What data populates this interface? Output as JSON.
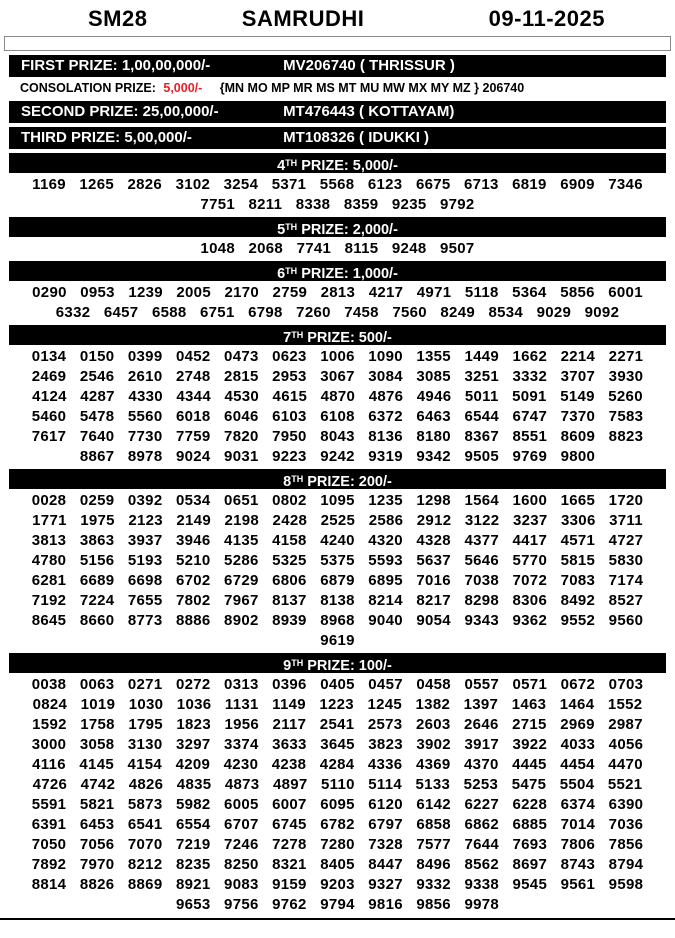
{
  "header": {
    "code": "SM28",
    "name": "SAMRUDHI",
    "date": "09-11-2025"
  },
  "colors": {
    "accent_red": "#ed1c24",
    "bar_bg": "#000000",
    "bar_text": "#ffffff"
  },
  "top_prizes": {
    "first": {
      "label": "FIRST PRIZE: 1,00,00,000/-",
      "winner": "MV206740 ( THRISSUR )"
    },
    "second": {
      "label": "SECOND PRIZE: 25,00,000/-",
      "winner": "MT476443 ( KOTTAYAM)"
    },
    "third": {
      "label": "THIRD PRIZE: 5,00,000/-",
      "winner": "MT108326 ( IDUKKI )"
    }
  },
  "consolation": {
    "label": "CONSOLATION PRIZE:",
    "amount": "5,000/-",
    "series": "{MN MO MP MR MS MT MU MW MX MY MZ } 206740"
  },
  "sections": [
    {
      "num": "4",
      "sup": "TH",
      "rest": " PRIZE: 5,000/-",
      "rows": [
        [
          "1169",
          "1265",
          "2826",
          "3102",
          "3254",
          "5371",
          "5568",
          "6123",
          "6675",
          "6713",
          "6819",
          "6909",
          "7346"
        ],
        [
          "7751",
          "8211",
          "8338",
          "8359",
          "9235",
          "9792"
        ]
      ]
    },
    {
      "num": "5",
      "sup": "TH",
      "rest": " PRIZE: 2,000/-",
      "rows": [
        [
          "1048",
          "2068",
          "7741",
          "8115",
          "9248",
          "9507"
        ]
      ]
    },
    {
      "num": "6",
      "sup": "TH",
      "rest": " PRIZE: 1,000/-",
      "rows": [
        [
          "0290",
          "0953",
          "1239",
          "2005",
          "2170",
          "2759",
          "2813",
          "4217",
          "4971",
          "5118",
          "5364",
          "5856",
          "6001"
        ],
        [
          "6332",
          "6457",
          "6588",
          "6751",
          "6798",
          "7260",
          "7458",
          "7560",
          "8249",
          "8534",
          "9029",
          "9092"
        ]
      ]
    },
    {
      "num": "7",
      "sup": "TH",
      "rest": " PRIZE: 500/-",
      "rows": [
        [
          "0134",
          "0150",
          "0399",
          "0452",
          "0473",
          "0623",
          "1006",
          "1090",
          "1355",
          "1449",
          "1662",
          "2214",
          "2271"
        ],
        [
          "2469",
          "2546",
          "2610",
          "2748",
          "2815",
          "2953",
          "3067",
          "3084",
          "3085",
          "3251",
          "3332",
          "3707",
          "3930"
        ],
        [
          "4124",
          "4287",
          "4330",
          "4344",
          "4530",
          "4615",
          "4870",
          "4876",
          "4946",
          "5011",
          "5091",
          "5149",
          "5260"
        ],
        [
          "5460",
          "5478",
          "5560",
          "6018",
          "6046",
          "6103",
          "6108",
          "6372",
          "6463",
          "6544",
          "6747",
          "7370",
          "7583"
        ],
        [
          "7617",
          "7640",
          "7730",
          "7759",
          "7820",
          "7950",
          "8043",
          "8136",
          "8180",
          "8367",
          "8551",
          "8609",
          "8823"
        ],
        [
          "8867",
          "8978",
          "9024",
          "9031",
          "9223",
          "9242",
          "9319",
          "9342",
          "9505",
          "9769",
          "9800"
        ]
      ]
    },
    {
      "num": "8",
      "sup": "TH",
      "rest": " PRIZE: 200/-",
      "rows": [
        [
          "0028",
          "0259",
          "0392",
          "0534",
          "0651",
          "0802",
          "1095",
          "1235",
          "1298",
          "1564",
          "1600",
          "1665",
          "1720"
        ],
        [
          "1771",
          "1975",
          "2123",
          "2149",
          "2198",
          "2428",
          "2525",
          "2586",
          "2912",
          "3122",
          "3237",
          "3306",
          "3711"
        ],
        [
          "3813",
          "3863",
          "3937",
          "3946",
          "4135",
          "4158",
          "4240",
          "4320",
          "4328",
          "4377",
          "4417",
          "4571",
          "4727"
        ],
        [
          "4780",
          "5156",
          "5193",
          "5210",
          "5286",
          "5325",
          "5375",
          "5593",
          "5637",
          "5646",
          "5770",
          "5815",
          "5830"
        ],
        [
          "6281",
          "6689",
          "6698",
          "6702",
          "6729",
          "6806",
          "6879",
          "6895",
          "7016",
          "7038",
          "7072",
          "7083",
          "7174"
        ],
        [
          "7192",
          "7224",
          "7655",
          "7802",
          "7967",
          "8137",
          "8138",
          "8214",
          "8217",
          "8298",
          "8306",
          "8492",
          "8527"
        ],
        [
          "8645",
          "8660",
          "8773",
          "8886",
          "8902",
          "8939",
          "8968",
          "9040",
          "9054",
          "9343",
          "9362",
          "9552",
          "9560"
        ],
        [
          "9619"
        ]
      ]
    },
    {
      "num": "9",
      "sup": "TH",
      "rest": " PRIZE: 100/-",
      "rows": [
        [
          "0038",
          "0063",
          "0271",
          "0272",
          "0313",
          "0396",
          "0405",
          "0457",
          "0458",
          "0557",
          "0571",
          "0672",
          "0703"
        ],
        [
          "0824",
          "1019",
          "1030",
          "1036",
          "1131",
          "1149",
          "1223",
          "1245",
          "1382",
          "1397",
          "1463",
          "1464",
          "1552"
        ],
        [
          "1592",
          "1758",
          "1795",
          "1823",
          "1956",
          "2117",
          "2541",
          "2573",
          "2603",
          "2646",
          "2715",
          "2969",
          "2987"
        ],
        [
          "3000",
          "3058",
          "3130",
          "3297",
          "3374",
          "3633",
          "3645",
          "3823",
          "3902",
          "3917",
          "3922",
          "4033",
          "4056"
        ],
        [
          "4116",
          "4145",
          "4154",
          "4209",
          "4230",
          "4238",
          "4284",
          "4336",
          "4369",
          "4370",
          "4445",
          "4454",
          "4470"
        ],
        [
          "4726",
          "4742",
          "4826",
          "4835",
          "4873",
          "4897",
          "5110",
          "5114",
          "5133",
          "5253",
          "5475",
          "5504",
          "5521"
        ],
        [
          "5591",
          "5821",
          "5873",
          "5982",
          "6005",
          "6007",
          "6095",
          "6120",
          "6142",
          "6227",
          "6228",
          "6374",
          "6390"
        ],
        [
          "6391",
          "6453",
          "6541",
          "6554",
          "6707",
          "6745",
          "6782",
          "6797",
          "6858",
          "6862",
          "6885",
          "7014",
          "7036"
        ],
        [
          "7050",
          "7056",
          "7070",
          "7219",
          "7246",
          "7278",
          "7280",
          "7328",
          "7577",
          "7644",
          "7693",
          "7806",
          "7856"
        ],
        [
          "7892",
          "7970",
          "8212",
          "8235",
          "8250",
          "8321",
          "8405",
          "8447",
          "8496",
          "8562",
          "8697",
          "8743",
          "8794"
        ],
        [
          "8814",
          "8826",
          "8869",
          "8921",
          "9083",
          "9159",
          "9203",
          "9327",
          "9332",
          "9338",
          "9545",
          "9561",
          "9598"
        ],
        [
          "9653",
          "9756",
          "9762",
          "9794",
          "9816",
          "9856",
          "9978"
        ]
      ]
    }
  ]
}
